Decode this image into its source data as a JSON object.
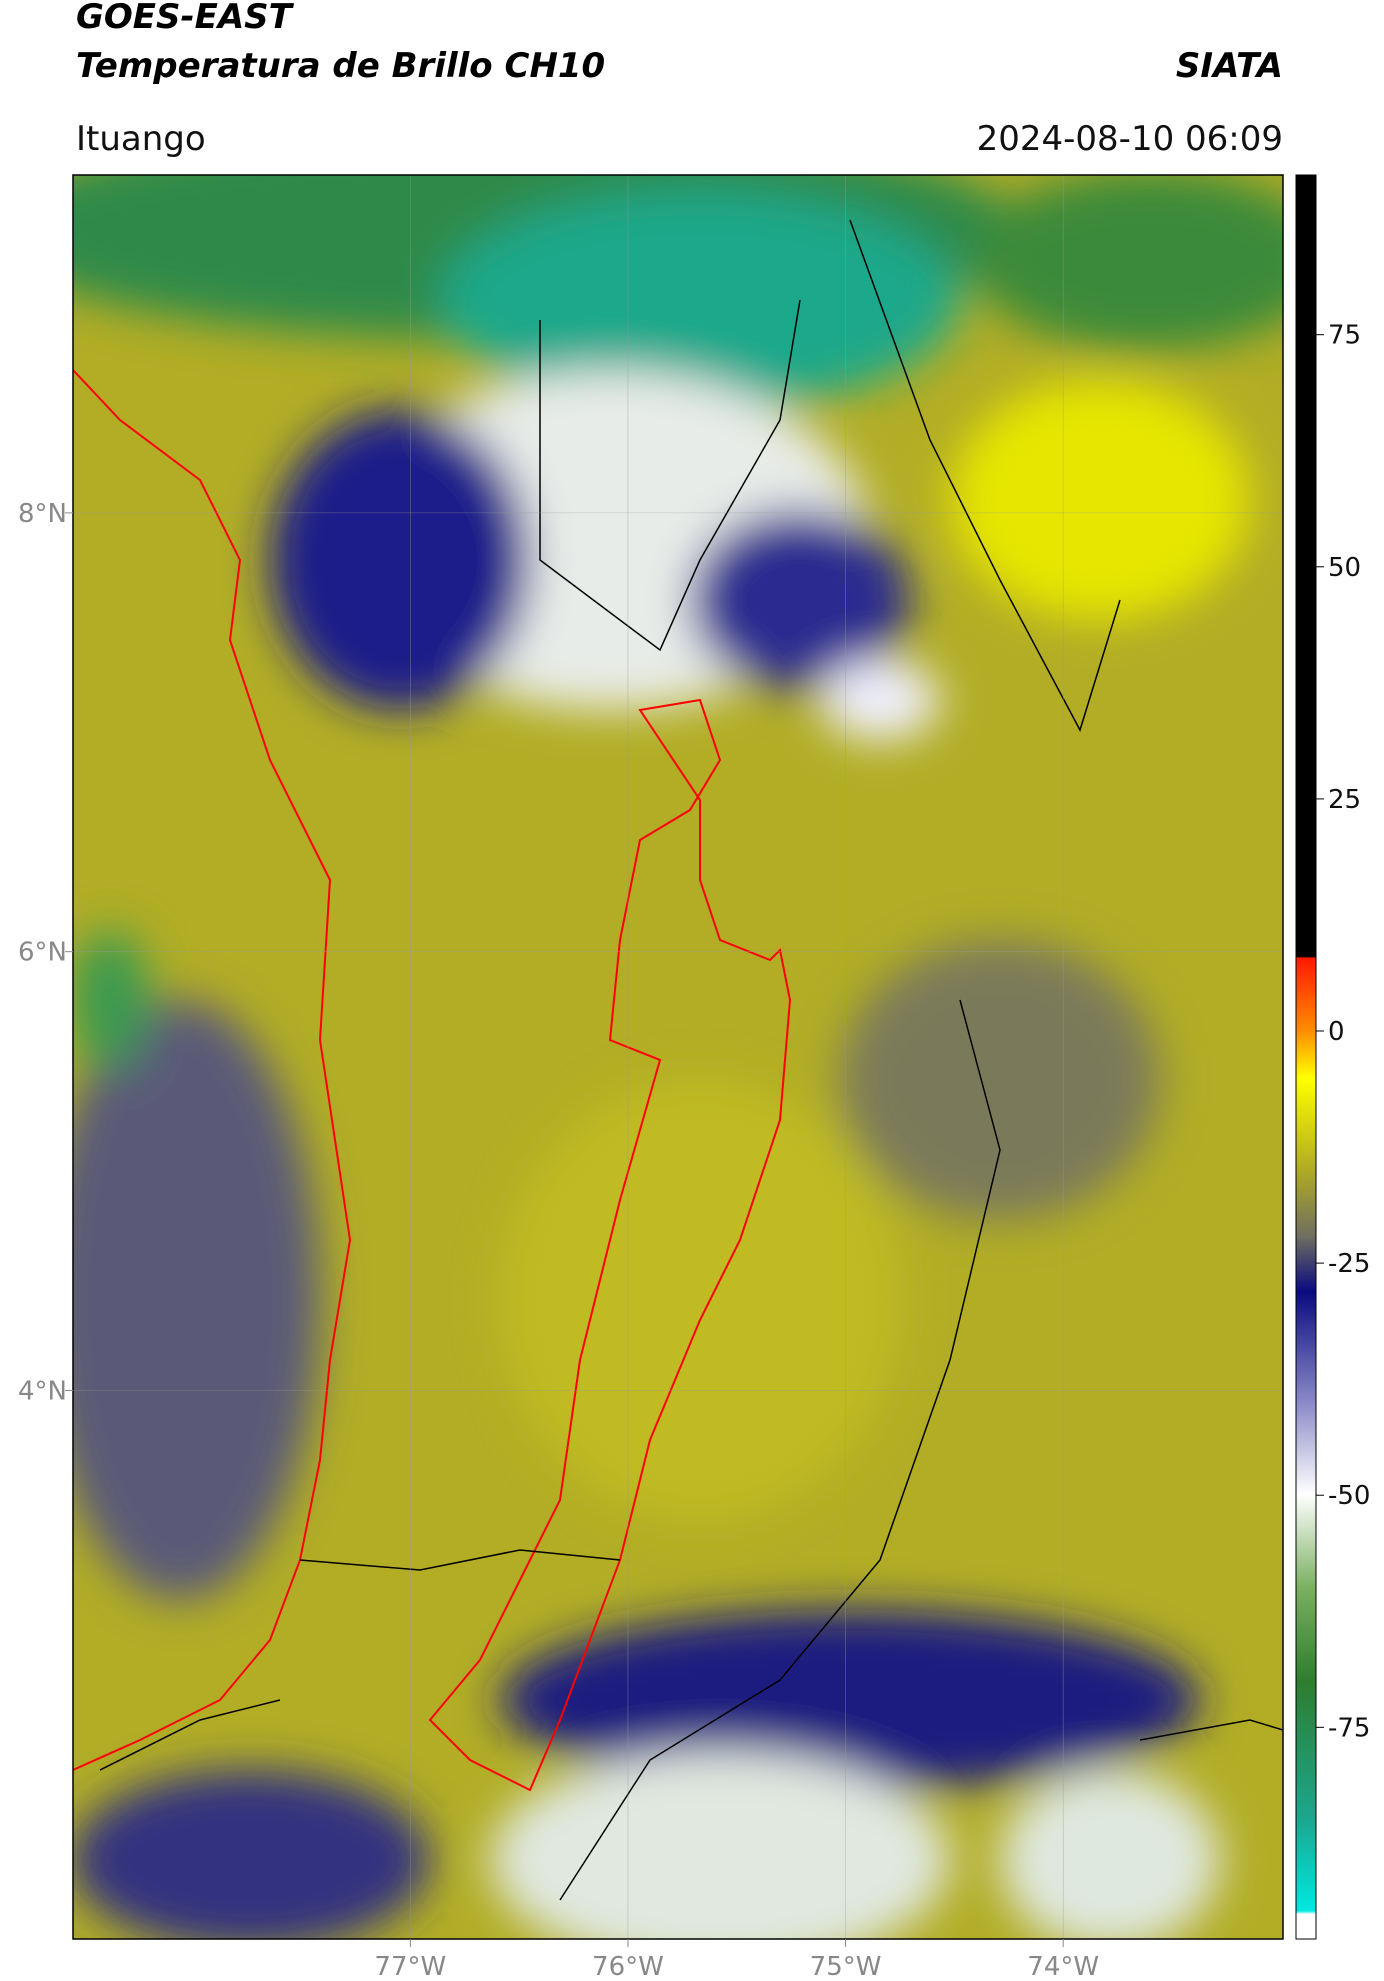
{
  "header": {
    "title": "GOES-EAST",
    "subtitle": "Temperatura de Brillo CH10",
    "brand": "SIATA",
    "location": "Ituango",
    "timestamp": "2024-08-10 06:09"
  },
  "map": {
    "xlim": [
      -78.55,
      -72.99
    ],
    "ylim": [
      1.5,
      9.54
    ],
    "xticks": [
      {
        "value": -77,
        "label": "77°W"
      },
      {
        "value": -76,
        "label": "76°W"
      },
      {
        "value": -75,
        "label": "75°W"
      },
      {
        "value": -74,
        "label": "74°W"
      }
    ],
    "yticks": [
      {
        "value": 8,
        "label": "8°N"
      },
      {
        "value": 6,
        "label": "6°N"
      },
      {
        "value": 4,
        "label": "4°N"
      }
    ],
    "grid": true
  },
  "colorbar": {
    "lim": [
      -97.8,
      92.2
    ],
    "ticks": [
      75,
      50,
      25,
      0,
      -25,
      -50,
      -75
    ]
  }
}
